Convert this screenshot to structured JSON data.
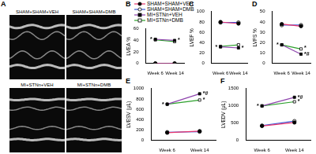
{
  "image_panel": {
    "label": "A",
    "captions": [
      "SHAM+SHAM+VEH",
      "SHAM+SHAM+DMB",
      "MI+STNn+VEH",
      "MI+STNn+DMB"
    ]
  },
  "chart_data": [
    {
      "type": "line",
      "panel_label": "B",
      "y_label": "LVEA %",
      "categories": [
        "Week 6",
        "Week 14"
      ],
      "ylim": [
        0,
        60
      ],
      "yticks": [
        0,
        20,
        40,
        60
      ],
      "grid": false,
      "legend": "top-left",
      "series": [
        {
          "name": "SHAM+SHAM+VEH",
          "color": "#e8336b",
          "marker": "circle",
          "values": [
            0,
            0
          ]
        },
        {
          "name": "SHAM+SHAM+DMB",
          "color": "#3b5bdb",
          "marker": "open_circle",
          "values": [
            0,
            0
          ]
        },
        {
          "name": "MI+STNn+VEH",
          "color": "#8e44ad",
          "marker": "square",
          "values": [
            42,
            40
          ]
        },
        {
          "name": "MI+STNn+DMB",
          "color": "#2ca02c",
          "marker": "open_square",
          "values": [
            41,
            38
          ]
        }
      ],
      "annotations": [
        {
          "text": "*",
          "x": "Week 6",
          "y": 42
        },
        {
          "text": "*",
          "x": "Week 14",
          "y": 40
        }
      ]
    },
    {
      "type": "line",
      "panel_label": "C",
      "y_label": "LVEF %",
      "categories": [
        "Week 6",
        "Week 14"
      ],
      "ylim": [
        0,
        100
      ],
      "yticks": [
        0,
        20,
        40,
        60,
        80,
        100
      ],
      "grid": false,
      "series": [
        {
          "name": "SHAM+SHAM+VEH",
          "color": "#e8336b",
          "marker": "circle",
          "values": [
            80,
            77
          ]
        },
        {
          "name": "SHAM+SHAM+DMB",
          "color": "#3b5bdb",
          "marker": "open_circle",
          "values": [
            79,
            79
          ]
        },
        {
          "name": "MI+STNn+VEH",
          "color": "#8e44ad",
          "marker": "square",
          "values": [
            32,
            30
          ]
        },
        {
          "name": "MI+STNn+DMB",
          "color": "#2ca02c",
          "marker": "open_square",
          "values": [
            33,
            36
          ]
        }
      ],
      "annotations": [
        {
          "text": "*",
          "x": "Week 6",
          "y": 32
        },
        {
          "text": "*",
          "x": "Week 14",
          "y": 30
        }
      ]
    },
    {
      "type": "line",
      "panel_label": "D",
      "y_label": "LVFS %",
      "categories": [
        "Week 6",
        "Week 14"
      ],
      "ylim": [
        0,
        50
      ],
      "yticks": [
        0,
        10,
        20,
        30,
        40,
        50
      ],
      "grid": false,
      "series": [
        {
          "name": "SHAM+SHAM+VEH",
          "color": "#e8336b",
          "marker": "circle",
          "values": [
            38,
            36
          ]
        },
        {
          "name": "SHAM+SHAM+DMB",
          "color": "#3b5bdb",
          "marker": "open_circle",
          "values": [
            37,
            37
          ]
        },
        {
          "name": "MI+STNn+VEH",
          "color": "#8e44ad",
          "marker": "square",
          "values": [
            18,
            9
          ]
        },
        {
          "name": "MI+STNn+DMB",
          "color": "#2ca02c",
          "marker": "open_square",
          "values": [
            18,
            14
          ]
        }
      ],
      "annotations": [
        {
          "text": "*",
          "x": "Week 6",
          "y": 18
        },
        {
          "text": "*#",
          "x": "Week 14",
          "y": 9
        },
        {
          "text": "*",
          "x": "Week 14",
          "y": 15
        }
      ]
    },
    {
      "type": "line",
      "panel_label": "E",
      "y_label": "LVESV (μL)",
      "categories": [
        "Week 6",
        "Week 14"
      ],
      "ylim": [
        0,
        1000
      ],
      "yticks": [
        0,
        200,
        400,
        600,
        800,
        1000
      ],
      "grid": false,
      "series": [
        {
          "name": "SHAM+SHAM+VEH",
          "color": "#e8336b",
          "marker": "circle",
          "values": [
            150,
            180
          ]
        },
        {
          "name": "SHAM+SHAM+DMB",
          "color": "#3b5bdb",
          "marker": "open_circle",
          "values": [
            160,
            170
          ]
        },
        {
          "name": "MI+STNn+VEH",
          "color": "#8e44ad",
          "marker": "square",
          "values": [
            700,
            900
          ]
        },
        {
          "name": "MI+STNn+DMB",
          "color": "#2ca02c",
          "marker": "open_square",
          "values": [
            700,
            780
          ]
        }
      ],
      "annotations": [
        {
          "text": "*",
          "x": "Week 6",
          "y": 700
        },
        {
          "text": "*#",
          "x": "Week 14",
          "y": 900
        },
        {
          "text": "*",
          "x": "Week 14",
          "y": 780
        }
      ]
    },
    {
      "type": "line",
      "panel_label": "F",
      "y_label": "LVEDV (μL)",
      "categories": [
        "Week 6",
        "Week 14"
      ],
      "ylim": [
        0,
        1500
      ],
      "yticks": [
        0,
        500,
        1000,
        1500
      ],
      "grid": false,
      "series": [
        {
          "name": "SHAM+SHAM+VEH",
          "color": "#e8336b",
          "marker": "circle",
          "values": [
            420,
            520
          ]
        },
        {
          "name": "SHAM+SHAM+DMB",
          "color": "#3b5bdb",
          "marker": "open_circle",
          "values": [
            430,
            560
          ]
        },
        {
          "name": "MI+STNn+VEH",
          "color": "#8e44ad",
          "marker": "square",
          "values": [
            1000,
            1250
          ]
        },
        {
          "name": "MI+STNn+DMB",
          "color": "#2ca02c",
          "marker": "open_square",
          "values": [
            1000,
            1120
          ]
        }
      ],
      "annotations": [
        {
          "text": "*",
          "x": "Week 6",
          "y": 1000
        },
        {
          "text": "*#",
          "x": "Week 14",
          "y": 1250
        },
        {
          "text": "*",
          "x": "Week 14",
          "y": 1120
        }
      ]
    }
  ]
}
